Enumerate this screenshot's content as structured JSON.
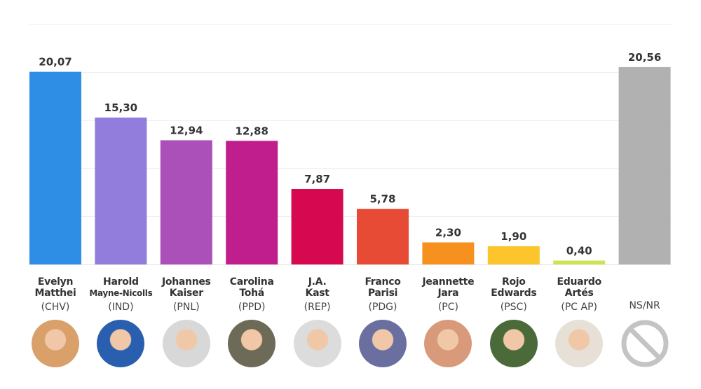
{
  "chart_data": {
    "type": "bar",
    "title": "",
    "xlabel": "",
    "ylabel": "",
    "ylim": [
      0,
      25
    ],
    "grid": true,
    "gridlines": [
      5,
      10,
      15,
      20,
      25
    ],
    "categories": [
      {
        "first": "Evelyn",
        "last": "Matthei",
        "party": "(CHV)",
        "value": 20.07,
        "label": "20,07",
        "color": "#2e8ee5"
      },
      {
        "first": "Harold",
        "last": "Mayne-Nicolls",
        "party": "(IND)",
        "value": 15.3,
        "label": "15,30",
        "color": "#927cdc"
      },
      {
        "first": "Johannes",
        "last": "Kaiser",
        "party": "(PNL)",
        "value": 12.94,
        "label": "12,94",
        "color": "#ab50b9"
      },
      {
        "first": "Carolina",
        "last": "Tohá",
        "party": "(PPD)",
        "value": 12.88,
        "label": "12,88",
        "color": "#c11e8d"
      },
      {
        "first": "J.A.",
        "last": "Kast",
        "party": "(REP)",
        "value": 7.87,
        "label": "7,87",
        "color": "#d6084f"
      },
      {
        "first": "Franco",
        "last": "Parisi",
        "party": "(PDG)",
        "value": 5.78,
        "label": "5,78",
        "color": "#e84b35"
      },
      {
        "first": "Jeannette",
        "last": "Jara",
        "party": "(PC)",
        "value": 2.3,
        "label": "2,30",
        "color": "#f6911f"
      },
      {
        "first": "Rojo",
        "last": "Edwards",
        "party": "(PSC)",
        "value": 1.9,
        "label": "1,90",
        "color": "#fbc52b"
      },
      {
        "first": "Eduardo",
        "last": "Artés",
        "party": "(PC AP)",
        "value": 0.4,
        "label": "0,40",
        "color": "#cde353"
      },
      {
        "first": "",
        "last": "",
        "party": "NS/NR",
        "value": 20.56,
        "label": "20,56",
        "color": "#b1b1b1"
      }
    ],
    "photo_colors": [
      "#d9a06a",
      "#2a5fb0",
      "#d8d8d8",
      "#6d6a58",
      "#dcdcdc",
      "#6a6fa0",
      "#d89a7a",
      "#4a6a3a",
      "#e6e0d6",
      "none"
    ]
  }
}
